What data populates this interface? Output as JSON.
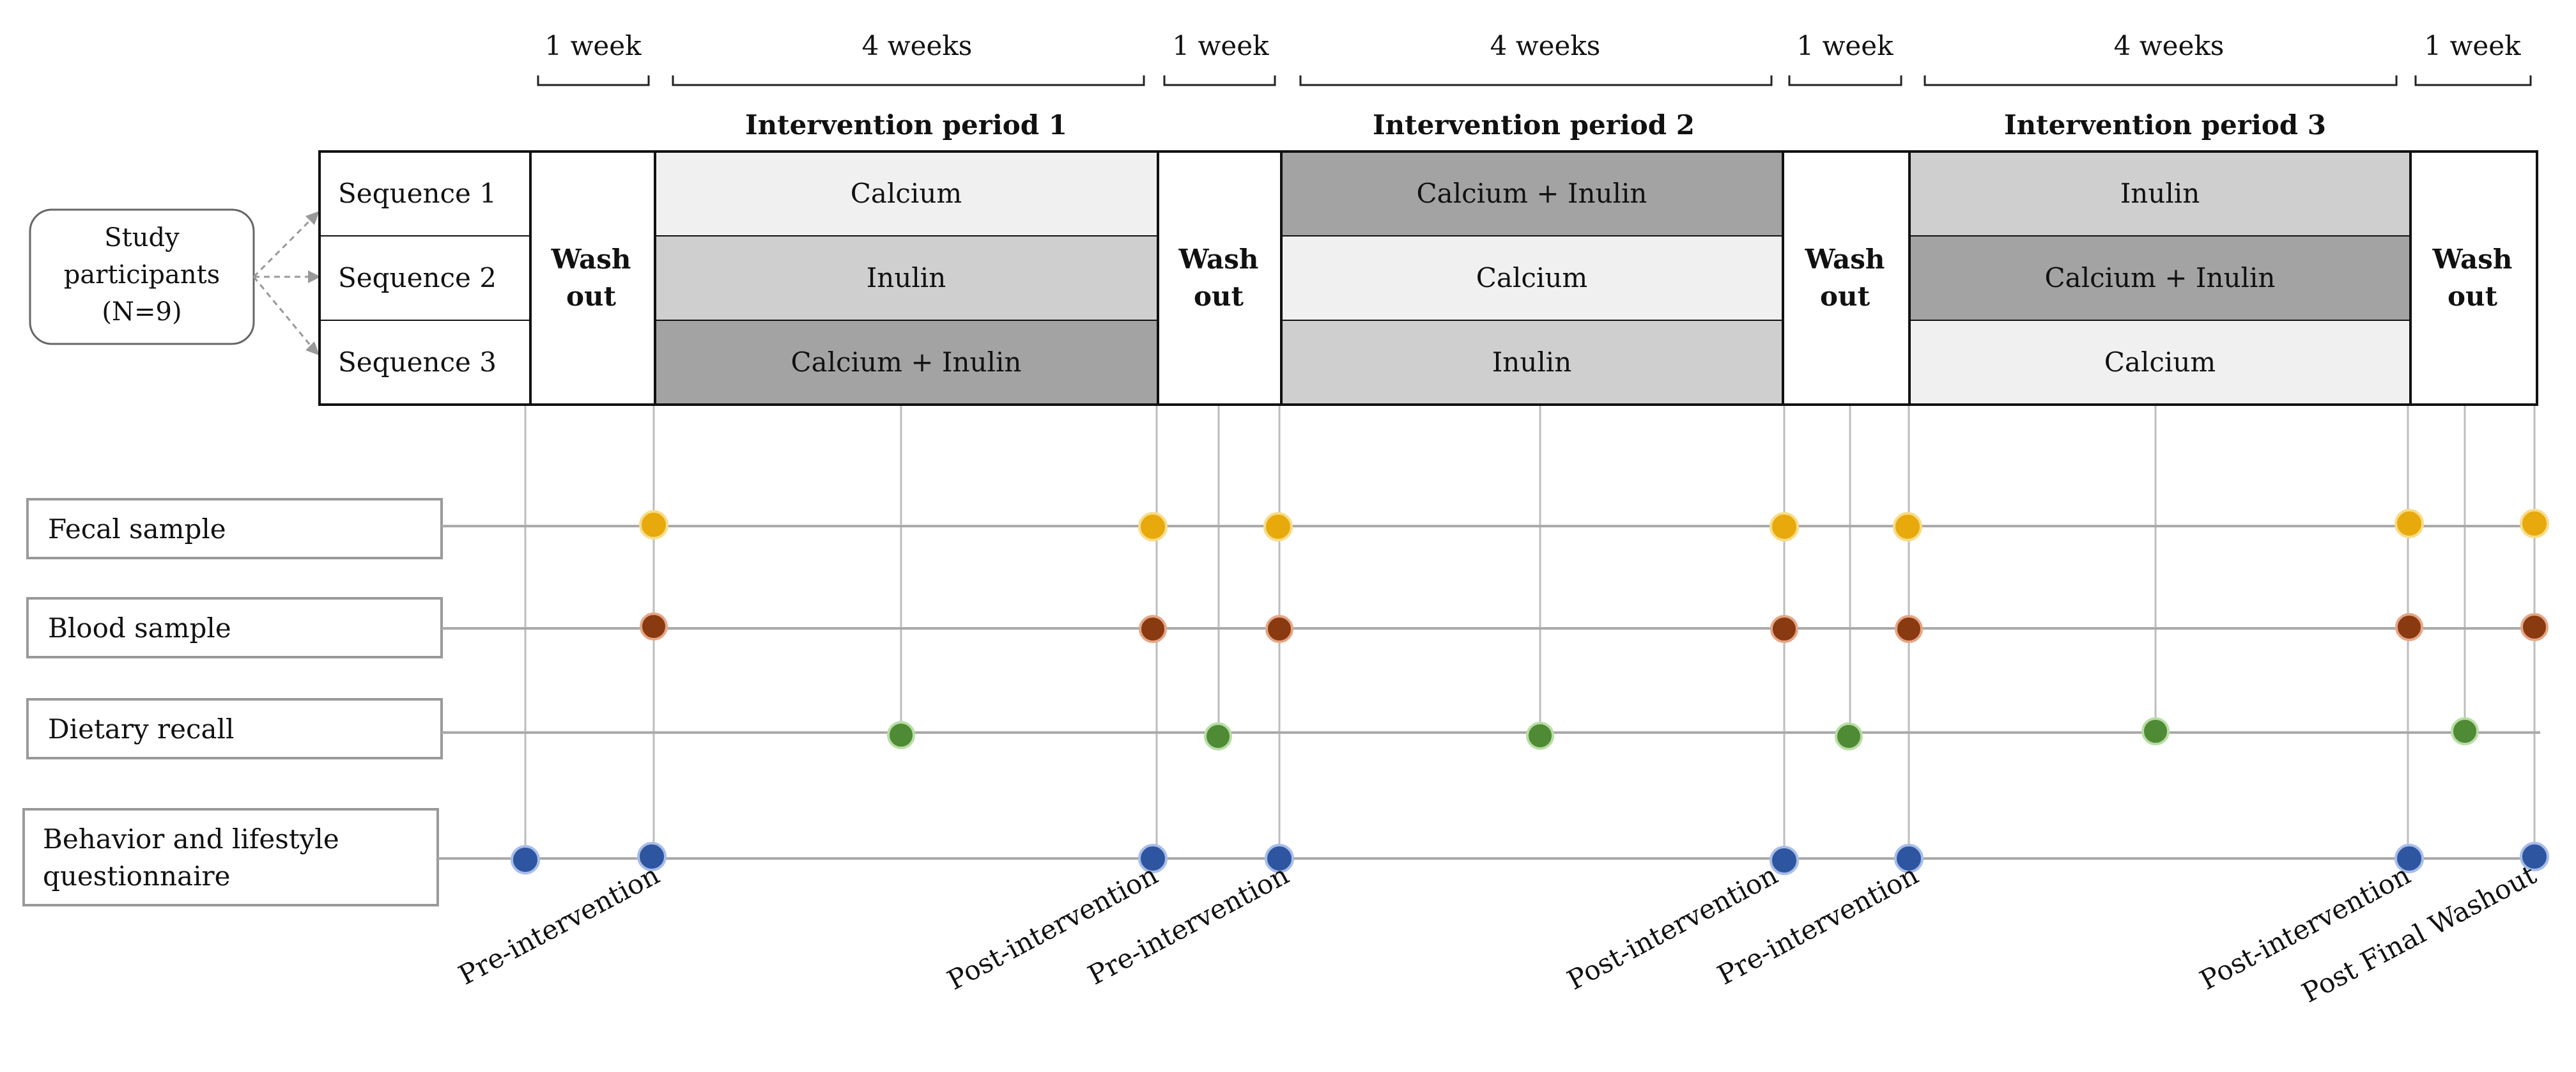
{
  "durations": {
    "washout1": "1 week",
    "period1": "4 weeks",
    "washout2": "1 week",
    "period2": "4 weeks",
    "washout3": "1 week",
    "period3": "4 weeks",
    "washout4": "1 week"
  },
  "periods": {
    "p1": "Intervention period 1",
    "p2": "Intervention period 2",
    "p3": "Intervention period 3"
  },
  "participants": {
    "line1": "Study",
    "line2": "participants",
    "line3": "(N=9)"
  },
  "sequences": [
    "Sequence 1",
    "Sequence 2",
    "Sequence 3"
  ],
  "washout": {
    "line1": "Wash",
    "line2": "out"
  },
  "treatments": {
    "p1": [
      "Calcium",
      "Inulin",
      "Calcium + Inulin"
    ],
    "p2": [
      "Calcium + Inulin",
      "Calcium",
      "Inulin"
    ],
    "p3": [
      "Inulin",
      "Calcium + Inulin",
      "Calcium"
    ]
  },
  "treatment_colors": {
    "Calcium": "#f0f0f0",
    "Inulin": "#cfcfcf",
    "Calcium + Inulin": "#a3a3a3"
  },
  "measures": {
    "fecal": "Fecal sample",
    "blood": "Blood sample",
    "diet": "Dietary recall",
    "behavior_line1": "Behavior and lifestyle",
    "behavior_line2": "questionnaire"
  },
  "marker_colors": {
    "fecal": "#e8a90c",
    "blood": "#8a3a10",
    "diet": "#4f8a35",
    "behavior": "#2e55a0"
  },
  "timepoints": {
    "t1": "Pre-intervention",
    "t2": "Post-intervention",
    "t3": "Pre-intervention",
    "t4": "Post-intervention",
    "t5": "Pre-intervention",
    "t6": "Post-intervention",
    "t7": "Post Final Washout"
  }
}
